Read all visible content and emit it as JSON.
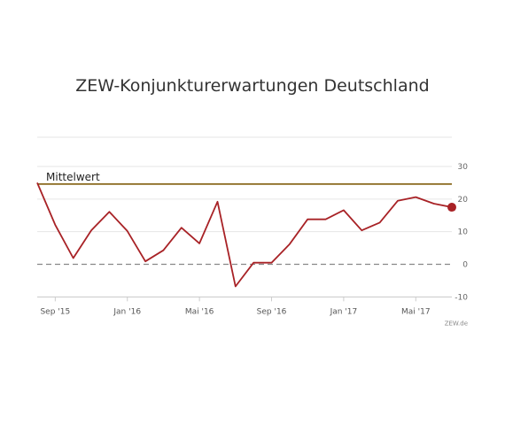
{
  "chart_data": {
    "type": "line",
    "title": "ZEW-Konjunkturerwartungen Deutschland",
    "xlabel": "",
    "ylabel": "",
    "ylim": [
      -10,
      30
    ],
    "y_ticks": [
      30,
      20,
      10,
      0,
      -10
    ],
    "x_ticks": [
      {
        "label": "Sep '15",
        "index": 1
      },
      {
        "label": "Jan '16",
        "index": 5
      },
      {
        "label": "Mai '16",
        "index": 9
      },
      {
        "label": "Sep '16",
        "index": 13
      },
      {
        "label": "Jan '17",
        "index": 17
      },
      {
        "label": "Mai '17",
        "index": 21
      }
    ],
    "x": [
      "Aug '15",
      "Sep '15",
      "Okt '15",
      "Nov '15",
      "Dez '15",
      "Jan '16",
      "Feb '16",
      "Mär '16",
      "Apr '16",
      "Mai '16",
      "Jun '16",
      "Jul '16",
      "Aug '16",
      "Sep '16",
      "Okt '16",
      "Nov '16",
      "Dez '16",
      "Jan '17",
      "Feb '17",
      "Mär '17",
      "Apr '17",
      "Mai '17",
      "Jun '17",
      "Jul '17"
    ],
    "series": [
      {
        "values": [
          25.0,
          12.1,
          1.9,
          10.4,
          16.1,
          10.2,
          0.9,
          4.3,
          11.2,
          6.4,
          19.2,
          -6.8,
          0.5,
          0.5,
          6.2,
          13.8,
          13.8,
          16.6,
          10.4,
          12.8,
          19.5,
          20.6,
          18.6,
          17.5
        ],
        "color": "#a82226"
      }
    ],
    "reference_lines": [
      {
        "label": "Mittelwert",
        "value": 24.6,
        "color": "#8a6a1f"
      },
      {
        "label": "",
        "value": 0,
        "color": "#888888",
        "style": "dashed"
      }
    ],
    "grid": true,
    "source_label": "ZEW.de"
  }
}
